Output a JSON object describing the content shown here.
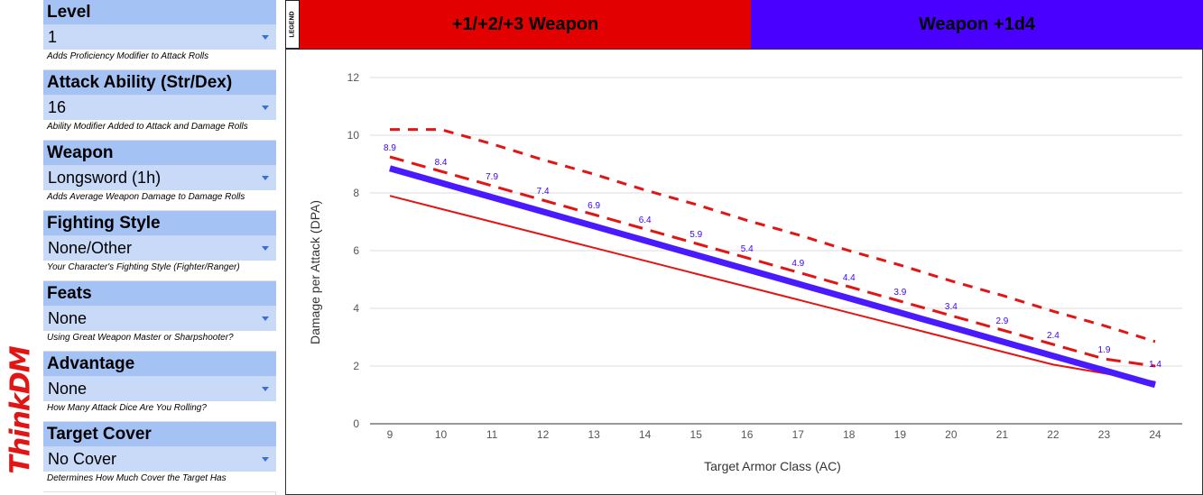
{
  "logo": {
    "text": "ThinkDM"
  },
  "sidebar": {
    "sections": [
      {
        "header": "Level",
        "value": "1",
        "description": "Adds Proficiency Modifier to Attack Rolls"
      },
      {
        "header": "Attack Ability (Str/Dex)",
        "value": "16",
        "description": "Ability Modifier Added to Attack and Damage Rolls"
      },
      {
        "header": "Weapon",
        "value": "Longsword (1h)",
        "description": "Adds Average Weapon Damage to Damage Rolls"
      },
      {
        "header": "Fighting Style",
        "value": "None/Other",
        "description": "Your Character's Fighting Style (Fighter/Ranger)"
      },
      {
        "header": "Feats",
        "value": "None",
        "description": "Using Great Weapon Master or Sharpshooter?"
      },
      {
        "header": "Advantage",
        "value": "None",
        "description": "How Many Attack Dice Are You Rolling?"
      },
      {
        "header": "Target Cover",
        "value": "No Cover",
        "description": "Determines How Much Cover the Target Has"
      }
    ]
  },
  "legend": {
    "label": "LEGEND",
    "items": [
      {
        "label": "+1/+2/+3 Weapon",
        "color": "#e30000"
      },
      {
        "label": "Weapon +1d4",
        "color": "#4a00ff"
      }
    ]
  },
  "chart_data": {
    "type": "line",
    "xlabel": "Target Armor Class (AC)",
    "ylabel": "Damage per Attack (DPA)",
    "x": [
      9,
      10,
      11,
      12,
      13,
      14,
      15,
      16,
      17,
      18,
      19,
      20,
      21,
      22,
      23,
      24
    ],
    "xlim": [
      9,
      24
    ],
    "ylim": [
      0,
      12
    ],
    "yticks": [
      0,
      2,
      4,
      6,
      8,
      10,
      12
    ],
    "grid": true,
    "series": [
      {
        "color": "#e31414",
        "style": "solid",
        "width": 2,
        "values": [
          7.9,
          7.45,
          7.0,
          6.55,
          6.1,
          5.65,
          5.2,
          4.75,
          4.3,
          3.85,
          3.4,
          2.95,
          2.5,
          2.05,
          1.75,
          1.45
        ]
      },
      {
        "color": "#e31414",
        "style": "dash-long",
        "width": 3,
        "values": [
          9.25,
          8.75,
          8.25,
          7.75,
          7.25,
          6.75,
          6.25,
          5.75,
          5.25,
          4.75,
          4.25,
          3.75,
          3.25,
          2.75,
          2.25,
          2.0
        ]
      },
      {
        "color": "#e31414",
        "style": "dash-short",
        "width": 3,
        "values": [
          10.2,
          10.2,
          9.7,
          9.15,
          8.65,
          8.1,
          7.6,
          7.05,
          6.55,
          6.0,
          5.5,
          4.95,
          4.45,
          3.9,
          3.4,
          2.85
        ]
      },
      {
        "color": "#4a1aff",
        "style": "solid",
        "width": 7,
        "values": [
          8.85,
          8.35,
          7.85,
          7.35,
          6.85,
          6.35,
          5.85,
          5.35,
          4.85,
          4.35,
          3.85,
          3.35,
          2.85,
          2.35,
          1.85,
          1.35
        ]
      }
    ],
    "data_labels": [
      "8.9",
      "8.4",
      "7.9",
      "7.4",
      "6.9",
      "6.4",
      "5.9",
      "5.4",
      "4.9",
      "4.4",
      "3.9",
      "3.4",
      "2.9",
      "2.4",
      "1.9",
      "1.4"
    ],
    "data_label_color": "#3d00ff"
  }
}
